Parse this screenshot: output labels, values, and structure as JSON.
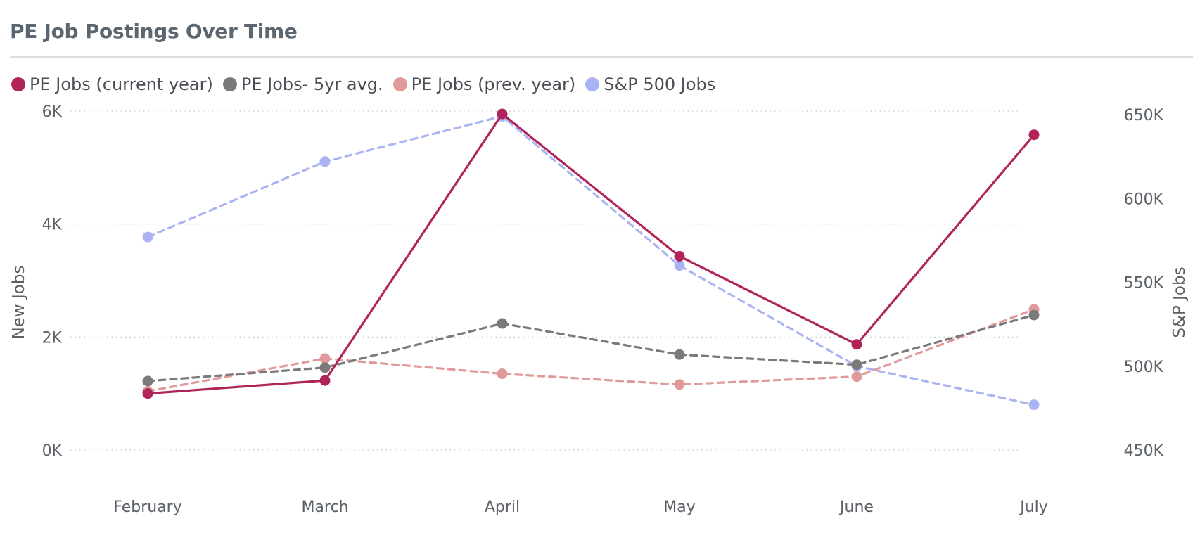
{
  "chart_data": {
    "type": "line",
    "title": "PE Job Postings Over Time",
    "categories": [
      "February",
      "March",
      "April",
      "May",
      "June",
      "July"
    ],
    "y_left": {
      "label": "New Jobs",
      "range": [
        0,
        6000
      ],
      "ticks": [
        0,
        2000,
        4000,
        6000
      ],
      "tick_labels": [
        "0K",
        "2K",
        "4K",
        "6K"
      ]
    },
    "y_right": {
      "label": "S&P Jobs",
      "range": [
        450000,
        650000
      ],
      "ticks": [
        450000,
        500000,
        550000,
        600000,
        650000
      ],
      "tick_labels": [
        "450K",
        "500K",
        "550K",
        "600K",
        "650K"
      ]
    },
    "grid": true,
    "legend_position": "top-left",
    "series": [
      {
        "name": "PE Jobs (current year)",
        "axis": "left",
        "dash": "solid",
        "color": "#b0245a",
        "values": [
          1000,
          1230,
          5950,
          3430,
          1870,
          5580
        ]
      },
      {
        "name": "PE Jobs- 5yr avg.",
        "axis": "left",
        "dash": "dashed",
        "color": "#7a7a7a",
        "values": [
          1220,
          1460,
          2240,
          1690,
          1510,
          2390
        ]
      },
      {
        "name": "PE Jobs (prev. year)",
        "axis": "left",
        "dash": "dashed",
        "color": "#e09a9a",
        "values": [
          1040,
          1620,
          1350,
          1160,
          1300,
          2490
        ]
      },
      {
        "name": "S&P 500 Jobs",
        "axis": "right",
        "dash": "dashed",
        "color": "#aab4f2",
        "values": [
          577000,
          622000,
          649000,
          560000,
          500000,
          477000
        ]
      }
    ]
  }
}
